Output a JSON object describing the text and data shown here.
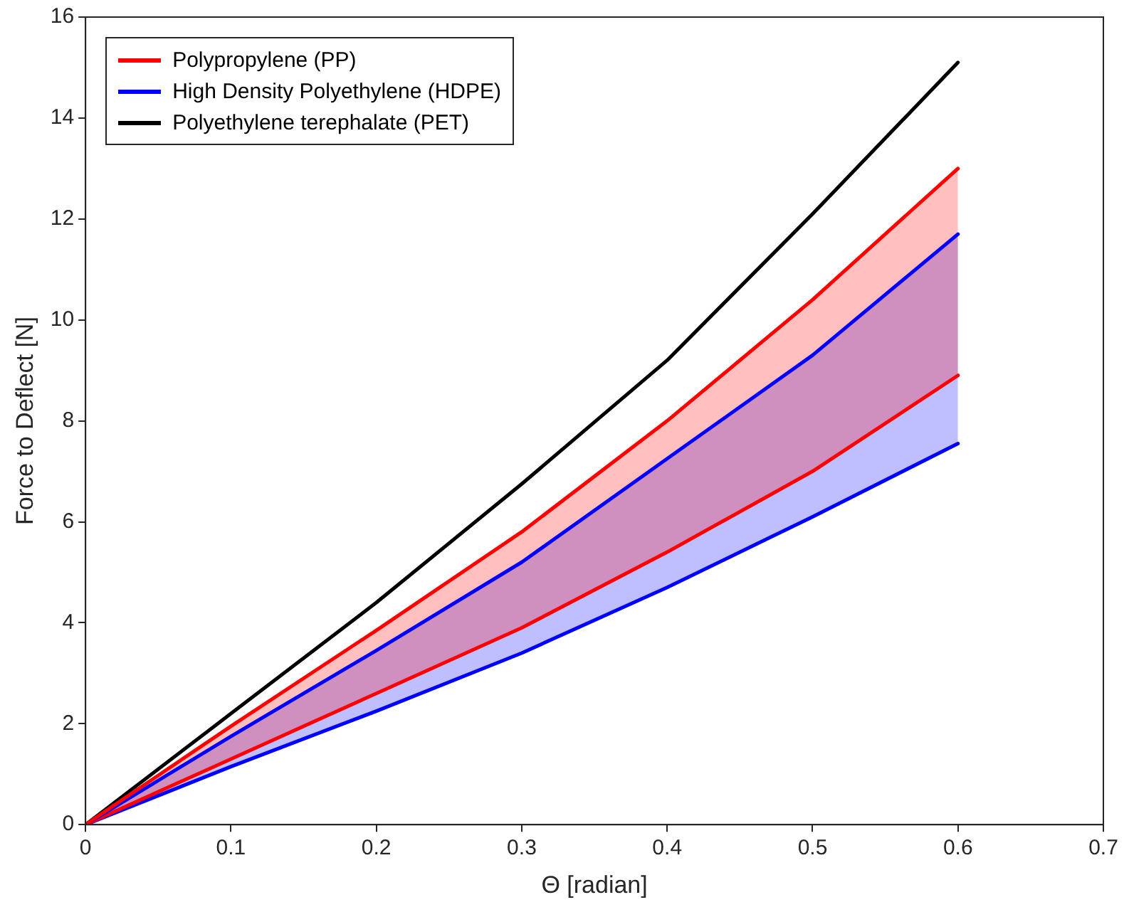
{
  "chart_data": {
    "type": "line",
    "xlabel": "Θ [radian]",
    "ylabel": "Force to Deflect [N]",
    "x": [
      0,
      0.1,
      0.2,
      0.3,
      0.4,
      0.5,
      0.6
    ],
    "series": [
      {
        "name": "Polypropylene (PP)",
        "color": "#ff0000",
        "values": [
          0,
          1.95,
          3.85,
          5.8,
          8.0,
          10.4,
          13.0
        ],
        "lower": [
          0,
          1.3,
          2.6,
          3.9,
          5.4,
          7.0,
          8.9
        ],
        "upper": [
          0,
          1.95,
          3.85,
          5.8,
          8.0,
          10.4,
          13.0
        ]
      },
      {
        "name": "High Density Polyethylene (HDPE)",
        "color": "#0000ff",
        "values": [
          0,
          1.75,
          3.45,
          5.2,
          7.25,
          9.3,
          11.7
        ],
        "lower": [
          0,
          1.15,
          2.25,
          3.4,
          4.7,
          6.1,
          7.55
        ],
        "upper": [
          0,
          1.75,
          3.45,
          5.2,
          7.25,
          9.3,
          11.7
        ]
      },
      {
        "name": "Polyethylene terephalate (PET)",
        "color": "#000000",
        "values": [
          0,
          2.2,
          4.4,
          6.75,
          9.2,
          12.1,
          15.1
        ]
      },
      {
        "color": "#ff0000",
        "values": [
          0,
          1.3,
          2.6,
          3.9,
          5.4,
          7.0,
          8.9
        ]
      },
      {
        "color": "#0000ff",
        "values": [
          0,
          1.15,
          2.25,
          3.4,
          4.7,
          6.1,
          7.55
        ]
      }
    ],
    "xlim": [
      0,
      0.7
    ],
    "xticks": [
      0,
      0.1,
      0.2,
      0.3,
      0.4,
      0.5,
      0.6,
      0.7
    ],
    "ylim": [
      0,
      16
    ],
    "yticks": [
      0,
      2,
      4,
      6,
      8,
      10,
      12,
      14,
      16
    ],
    "legend": "top left",
    "grid": false,
    "marker": "none",
    "line_style": "solid"
  }
}
